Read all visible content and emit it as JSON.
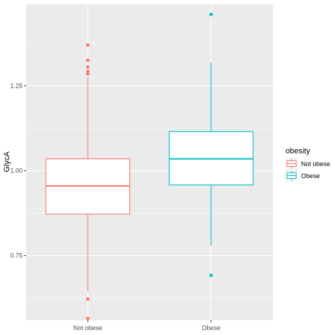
{
  "chart_data": {
    "type": "boxplot",
    "title": "",
    "xlabel": "",
    "ylabel": "GlycA",
    "categories": [
      "Not obese",
      "Obese"
    ],
    "ylim": [
      0.56,
      1.49
    ],
    "yticks": [
      0.75,
      1.0,
      1.25
    ],
    "ytick_labels": [
      "0.75",
      "1.00",
      "1.25"
    ],
    "grid": true,
    "legend": {
      "title": "obesity",
      "position": "right",
      "entries": [
        "Not obese",
        "Obese"
      ]
    },
    "series": [
      {
        "name": "Not obese",
        "color": "#F8766D",
        "whisker_low": 0.645,
        "q1": 0.872,
        "median": 0.955,
        "q3": 1.035,
        "whisker_high": 1.275,
        "outliers": [
          0.565,
          0.622,
          1.285,
          1.292,
          1.305,
          1.325,
          1.37
        ]
      },
      {
        "name": "Obese",
        "color": "#00BFC4",
        "whisker_low": 0.78,
        "q1": 0.958,
        "median": 1.035,
        "q3": 1.115,
        "whisker_high": 1.318,
        "outliers": [
          0.692,
          1.46
        ]
      }
    ]
  }
}
